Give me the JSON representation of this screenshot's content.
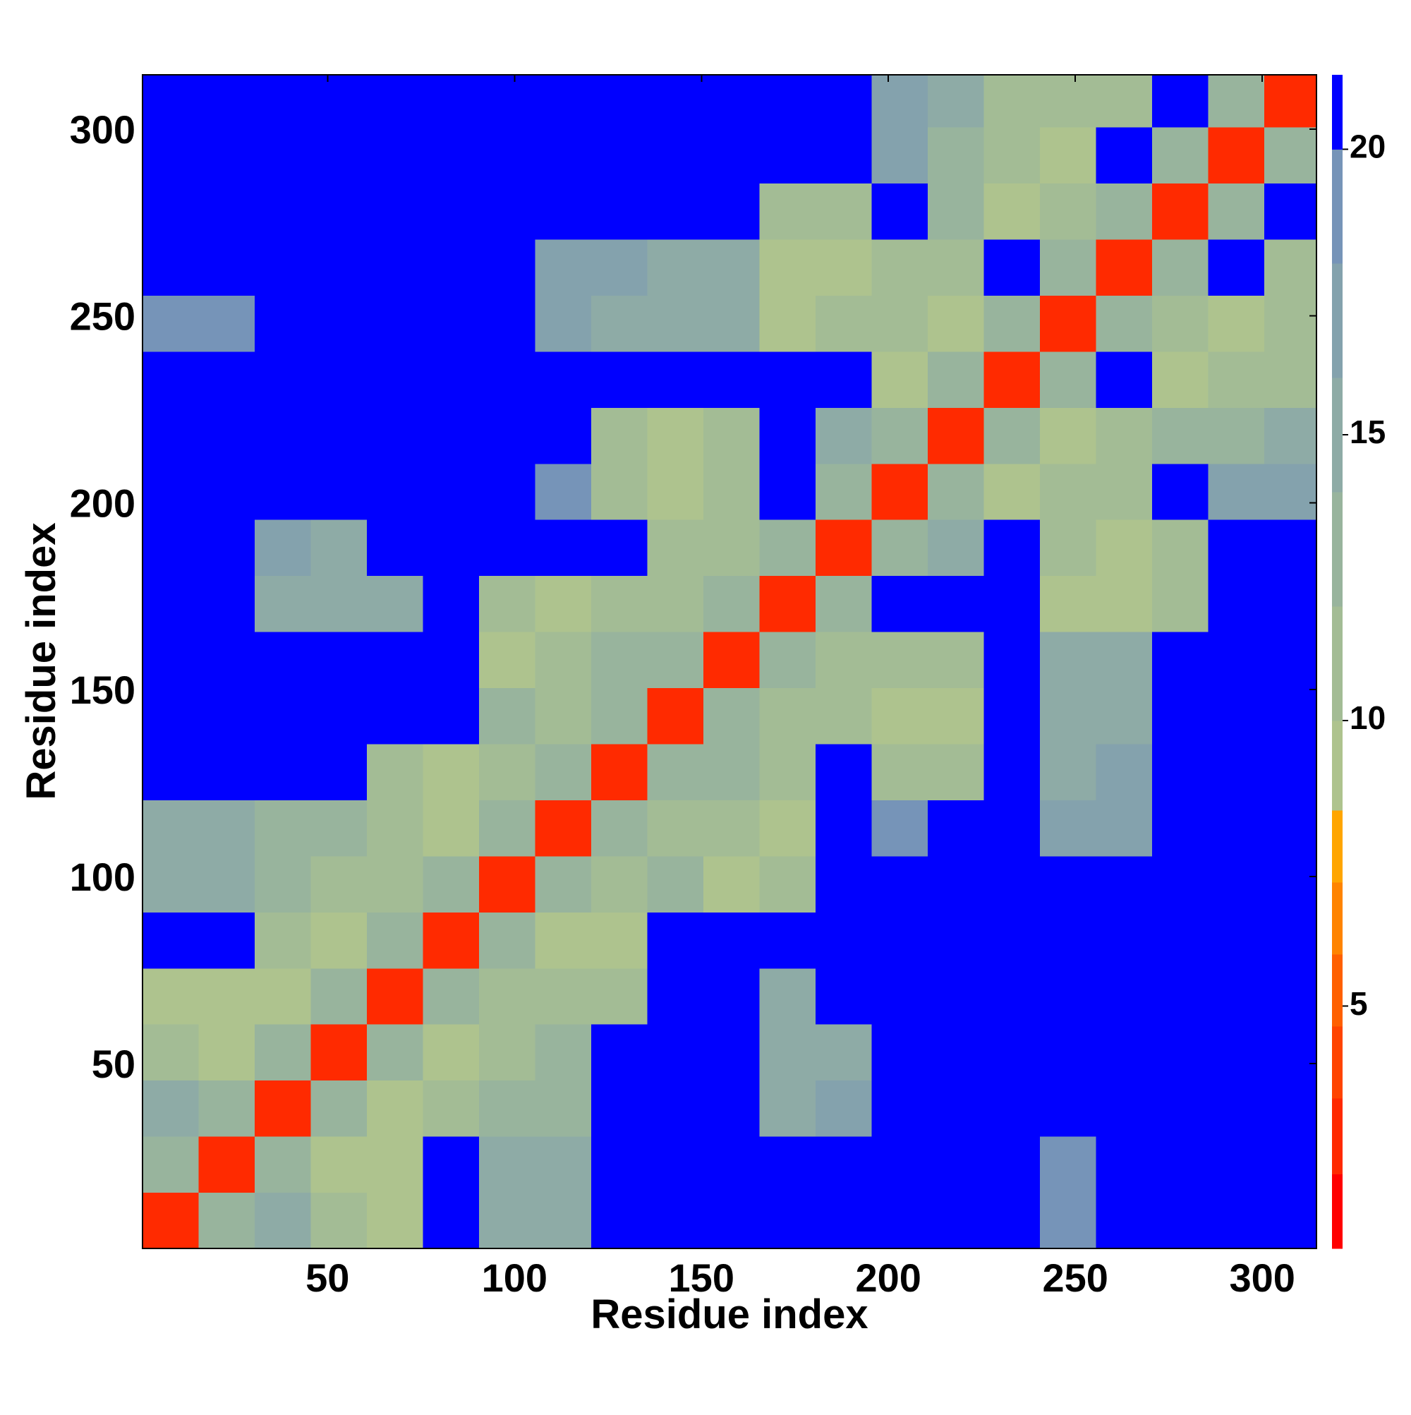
{
  "chart_data": {
    "type": "heatmap",
    "x_label": "Residue index",
    "y_label": "Residue index",
    "xlim": [
      0.5,
      314.5
    ],
    "ylim": [
      0.5,
      314.5
    ],
    "xticks": [
      50,
      100,
      150,
      200,
      250,
      300
    ],
    "yticks": [
      50,
      100,
      150,
      200,
      250,
      300
    ],
    "x_edges": [
      0.5,
      15.5,
      30.5,
      45.5,
      60.5,
      75.5,
      90.5,
      105.5,
      120.5,
      135.5,
      150.5,
      165.5,
      180.5,
      195.5,
      210.5,
      225.5,
      240.5,
      255.5,
      270.5,
      285.5,
      300.5,
      314.5
    ],
    "y_edges": [
      0.5,
      15.5,
      30.5,
      45.5,
      60.5,
      75.5,
      90.5,
      105.5,
      120.5,
      135.5,
      150.5,
      165.5,
      180.5,
      195.5,
      210.5,
      225.5,
      240.5,
      255.5,
      270.5,
      285.5,
      300.5,
      314.5
    ],
    "z": [
      [
        3,
        13,
        15,
        11,
        10,
        21,
        15,
        15,
        21,
        21,
        21,
        21,
        21,
        21,
        21,
        21,
        20,
        21,
        21,
        21,
        21
      ],
      [
        13,
        3,
        13,
        10,
        10,
        21,
        15,
        16,
        21,
        21,
        21,
        21,
        21,
        21,
        21,
        21,
        20,
        21,
        21,
        21,
        21
      ],
      [
        15,
        13,
        3,
        13,
        9,
        12,
        13,
        14,
        21,
        21,
        21,
        16,
        17,
        21,
        21,
        21,
        21,
        21,
        21,
        21,
        21
      ],
      [
        11,
        10,
        13,
        3,
        13,
        9,
        12,
        13,
        21,
        21,
        21,
        15,
        16,
        21,
        21,
        21,
        21,
        21,
        21,
        21,
        21
      ],
      [
        10,
        10,
        9,
        13,
        3,
        13,
        11,
        11,
        12,
        21,
        21,
        16,
        21,
        21,
        21,
        21,
        21,
        21,
        21,
        21,
        21
      ],
      [
        21,
        21,
        12,
        9,
        13,
        3,
        13,
        10,
        10,
        21,
        21,
        21,
        21,
        21,
        21,
        21,
        21,
        21,
        21,
        21,
        21
      ],
      [
        15,
        15,
        13,
        12,
        11,
        13,
        3,
        13,
        12,
        14,
        10,
        12,
        21,
        21,
        21,
        21,
        21,
        21,
        21,
        21,
        21
      ],
      [
        15,
        16,
        14,
        13,
        11,
        10,
        13,
        3,
        13,
        12,
        11,
        10,
        21,
        19,
        21,
        21,
        17,
        17,
        21,
        21,
        21
      ],
      [
        21,
        21,
        21,
        21,
        12,
        10,
        12,
        13,
        3,
        13,
        13,
        12,
        21,
        11,
        12,
        21,
        16,
        17,
        21,
        21,
        21
      ],
      [
        21,
        21,
        21,
        21,
        21,
        21,
        14,
        12,
        13,
        3,
        13,
        11,
        12,
        10,
        10,
        21,
        15,
        16,
        21,
        21,
        21
      ],
      [
        21,
        21,
        21,
        21,
        21,
        21,
        10,
        11,
        13,
        13,
        3,
        13,
        11,
        12,
        12,
        21,
        15,
        16,
        21,
        21,
        21
      ],
      [
        21,
        21,
        16,
        15,
        16,
        21,
        12,
        10,
        12,
        11,
        13,
        3,
        13,
        21,
        21,
        21,
        10,
        10,
        11,
        21,
        21
      ],
      [
        21,
        21,
        17,
        16,
        21,
        21,
        21,
        21,
        21,
        12,
        11,
        13,
        3,
        13,
        16,
        21,
        11,
        10,
        12,
        21,
        21
      ],
      [
        21,
        21,
        21,
        21,
        21,
        21,
        21,
        19,
        11,
        10,
        12,
        21,
        13,
        3,
        13,
        10,
        11,
        12,
        21,
        17,
        17
      ],
      [
        21,
        21,
        21,
        21,
        21,
        21,
        21,
        21,
        12,
        10,
        12,
        21,
        16,
        13,
        3,
        13,
        10,
        12,
        13,
        13,
        16
      ],
      [
        21,
        21,
        21,
        21,
        21,
        21,
        21,
        21,
        21,
        21,
        21,
        21,
        21,
        10,
        13,
        3,
        13,
        21,
        10,
        11,
        12
      ],
      [
        20,
        20,
        21,
        21,
        21,
        21,
        21,
        17,
        16,
        15,
        15,
        10,
        11,
        11,
        10,
        13,
        3,
        13,
        11,
        10,
        12
      ],
      [
        21,
        21,
        21,
        21,
        21,
        21,
        21,
        17,
        17,
        16,
        16,
        10,
        10,
        12,
        12,
        21,
        13,
        3,
        13,
        21,
        11
      ],
      [
        21,
        21,
        21,
        21,
        21,
        21,
        21,
        21,
        21,
        21,
        21,
        11,
        12,
        21,
        13,
        10,
        11,
        13,
        3,
        13,
        21
      ],
      [
        21,
        21,
        21,
        21,
        21,
        21,
        21,
        21,
        21,
        21,
        21,
        21,
        21,
        17,
        13,
        11,
        10,
        21,
        13,
        3,
        13
      ],
      [
        21,
        21,
        21,
        21,
        21,
        21,
        21,
        21,
        21,
        21,
        21,
        21,
        21,
        17,
        16,
        12,
        12,
        11,
        21,
        13,
        3
      ]
    ],
    "clim": [
      0.76,
      21.3
    ],
    "cbar_ticks": [
      5,
      10,
      15,
      20
    ],
    "color_bounds": [
      0.76,
      2.06,
      3.39,
      4.65,
      5.91,
      7.17,
      8.43,
      10,
      12,
      14,
      16,
      18,
      20,
      21.3
    ],
    "colors": [
      "#ff0000",
      "#ff2a00",
      "#ff4400",
      "#ff6000",
      "#ff8400",
      "#ffa500",
      "#aec38e",
      "#a3bc95",
      "#98b49d",
      "#8eaba6",
      "#84a2ad",
      "#7694b8",
      "#0000ff"
    ]
  }
}
